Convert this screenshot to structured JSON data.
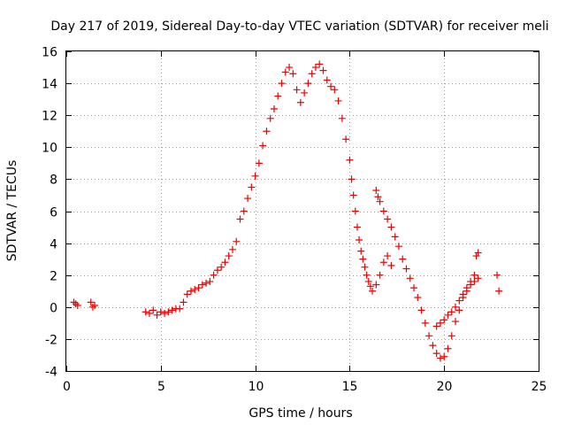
{
  "chart_data": {
    "type": "scatter",
    "title": "Day 217 of 2019, Sidereal Day-to-day VTEC variation (SDTVAR) for receiver meli",
    "xlabel": "GPS time / hours",
    "ylabel": "SDTVAR / TECUs",
    "xlim": [
      0,
      25
    ],
    "ylim": [
      -4,
      16
    ],
    "xticks": [
      "0",
      "5",
      "10",
      "15",
      "20",
      "25"
    ],
    "yticks": [
      "-4",
      "-2",
      "0",
      "2",
      "4",
      "6",
      "8",
      "10",
      "12",
      "14",
      "16"
    ],
    "grid": true,
    "marker": "+",
    "color": "#ee0000",
    "series": [
      {
        "name": "SDTVAR",
        "x": [
          0.4,
          0.5,
          0.6,
          1.3,
          1.4,
          1.5,
          4.2,
          4.4,
          4.6,
          4.8,
          5.0,
          5.2,
          5.4,
          5.6,
          5.8,
          6.0,
          6.2,
          6.4,
          6.6,
          6.8,
          7.0,
          7.2,
          7.4,
          7.6,
          7.8,
          8.0,
          8.2,
          8.4,
          8.6,
          8.8,
          9.0,
          9.2,
          9.4,
          9.6,
          9.8,
          10.0,
          10.2,
          10.4,
          10.6,
          10.8,
          11.0,
          11.2,
          11.4,
          11.6,
          11.8,
          12.0,
          12.2,
          12.4,
          12.6,
          12.8,
          13.0,
          13.2,
          13.4,
          13.6,
          13.8,
          14.0,
          14.2,
          14.4,
          14.6,
          14.8,
          15.0,
          15.1,
          15.2,
          15.3,
          15.4,
          15.5,
          15.6,
          15.7,
          15.8,
          15.9,
          16.0,
          16.1,
          16.2,
          16.4,
          16.6,
          16.8,
          17.0,
          17.2,
          16.4,
          16.5,
          16.6,
          16.8,
          17.0,
          17.2,
          17.4,
          17.6,
          17.8,
          18.0,
          18.2,
          18.4,
          18.6,
          18.8,
          19.0,
          19.2,
          19.4,
          19.6,
          19.8,
          20.0,
          20.2,
          20.4,
          20.6,
          20.8,
          21.0,
          21.2,
          21.4,
          21.6,
          21.8,
          19.6,
          19.8,
          20.0,
          20.2,
          20.4,
          20.6,
          20.8,
          21.0,
          21.2,
          21.4,
          21.6,
          21.7,
          21.8,
          22.8,
          22.9
        ],
        "y": [
          0.3,
          0.2,
          0.1,
          0.3,
          0.0,
          0.1,
          -0.3,
          -0.4,
          -0.2,
          -0.5,
          -0.3,
          -0.4,
          -0.3,
          -0.2,
          -0.1,
          -0.1,
          0.3,
          0.8,
          1.0,
          1.1,
          1.2,
          1.4,
          1.5,
          1.6,
          2.0,
          2.3,
          2.5,
          2.8,
          3.2,
          3.6,
          4.1,
          5.5,
          6.0,
          6.8,
          7.5,
          8.2,
          9.0,
          10.1,
          11.0,
          11.8,
          12.4,
          13.2,
          14.0,
          14.7,
          15.0,
          14.6,
          13.6,
          12.8,
          13.4,
          14.0,
          14.6,
          15.0,
          15.2,
          14.8,
          14.2,
          13.8,
          13.6,
          12.9,
          11.8,
          10.5,
          9.2,
          8.0,
          7.0,
          6.0,
          5.0,
          4.2,
          3.5,
          3.0,
          2.5,
          2.0,
          1.6,
          1.3,
          1.0,
          1.4,
          2.0,
          2.8,
          3.2,
          2.6,
          7.3,
          6.9,
          6.6,
          6.0,
          5.5,
          5.0,
          4.4,
          3.8,
          3.0,
          2.4,
          1.8,
          1.2,
          0.6,
          -0.2,
          -1.0,
          -1.8,
          -2.4,
          -2.9,
          -3.2,
          -3.1,
          -2.6,
          -1.8,
          -0.9,
          -0.2,
          0.6,
          1.0,
          1.4,
          1.6,
          1.8,
          -1.2,
          -1.0,
          -0.8,
          -0.5,
          -0.3,
          0.0,
          0.4,
          0.8,
          1.2,
          1.6,
          2.0,
          3.2,
          3.4,
          2.0,
          1.0
        ]
      }
    ]
  }
}
